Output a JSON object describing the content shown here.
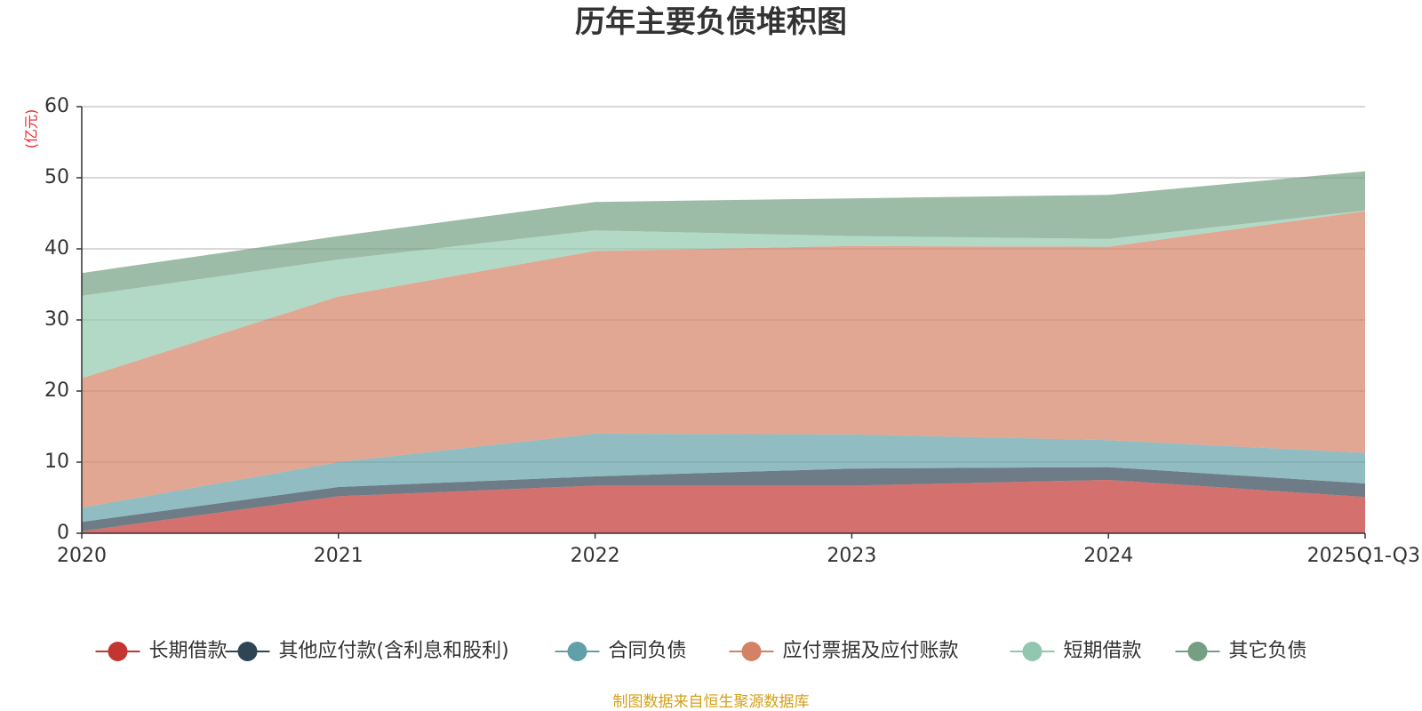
{
  "chart_data": {
    "type": "area",
    "stacked": true,
    "title": "历年主要负债堆积图",
    "unit_label": "(亿元)",
    "categories": [
      "2020",
      "2021",
      "2022",
      "2023",
      "2024",
      "2025Q1-Q3"
    ],
    "ylim": [
      0,
      60
    ],
    "yticks": [
      0,
      10,
      20,
      30,
      40,
      50,
      60
    ],
    "grid": true,
    "legend_position": "bottom",
    "series": [
      {
        "name": "长期借款",
        "color": "#c23531",
        "values": [
          0.3,
          5.2,
          6.7,
          6.7,
          7.5,
          5.1
        ]
      },
      {
        "name": "其他应付款(含利息和股利)",
        "color": "#2f4554",
        "values": [
          1.3,
          1.3,
          1.3,
          2.4,
          1.8,
          1.9
        ]
      },
      {
        "name": "合同负债",
        "color": "#61a0a8",
        "values": [
          2.0,
          3.5,
          6.0,
          4.8,
          3.8,
          4.3
        ]
      },
      {
        "name": "应付票据及应付账款",
        "color": "#d48265",
        "values": [
          18.2,
          23.3,
          25.7,
          26.5,
          27.2,
          34.0
        ]
      },
      {
        "name": "短期借款",
        "color": "#91c7ae",
        "values": [
          11.6,
          5.2,
          2.9,
          1.4,
          1.1,
          0.1
        ]
      },
      {
        "name": "其它负债",
        "color": "#749f83",
        "values": [
          3.2,
          3.3,
          4.0,
          5.3,
          6.2,
          5.5
        ]
      }
    ],
    "source": "制图数据来自恒生聚源数据库"
  }
}
